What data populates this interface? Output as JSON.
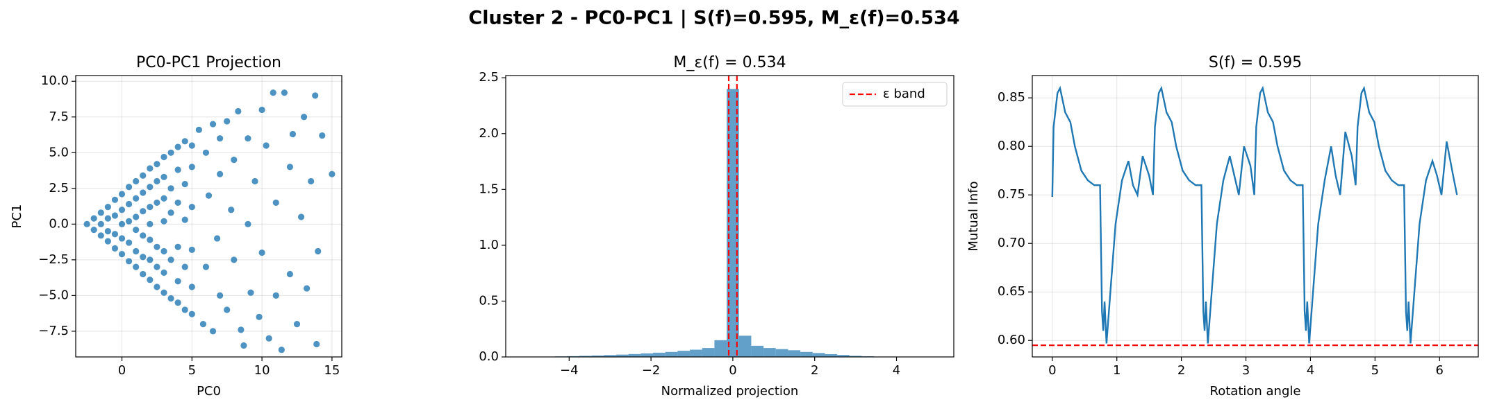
{
  "title": "Cluster 2 - PC0-PC1 | S(f)=0.595, M_ε(f)=0.534",
  "chart_data": [
    {
      "type": "scatter",
      "title": "PC0-PC1 Projection",
      "x_label": "PC0",
      "y_label": "PC1",
      "color": "#1f77b4",
      "grid": true,
      "xlim": [
        -3.3,
        15.7
      ],
      "xticks": [
        0,
        5,
        10,
        15
      ],
      "ylim": [
        -9.3,
        10.4
      ],
      "yticks": [
        {
          "value": -7.5,
          "label": "−7.5"
        },
        {
          "value": -5,
          "label": "−5.0"
        },
        {
          "value": -2.5,
          "label": "−2.5"
        },
        {
          "value": 0,
          "label": "0.0"
        },
        2.5,
        {
          "value": 5,
          "label": "5.0"
        },
        7.5,
        {
          "value": 10,
          "label": "10.0"
        }
      ],
      "x": [
        -2.5,
        -2,
        -2,
        -1.5,
        -1.5,
        -1.5,
        -1,
        -1,
        -1,
        -1,
        -0.5,
        -0.5,
        -0.5,
        -0.5,
        0,
        0,
        0,
        0,
        0,
        0.5,
        0.5,
        0.5,
        0.5,
        0.5,
        1,
        1,
        1,
        1,
        1,
        1,
        1.5,
        1.5,
        1.5,
        1.5,
        1.5,
        1.5,
        2,
        2,
        2,
        2,
        2,
        2,
        2,
        2.5,
        2.5,
        2.5,
        2.5,
        2.5,
        2.5,
        3,
        3,
        3,
        3,
        3,
        3,
        3,
        3.5,
        3.5,
        3.5,
        3.5,
        3.5,
        4,
        4,
        4,
        4,
        4,
        4,
        4.5,
        4.5,
        4.5,
        4.5,
        4.5,
        5,
        5,
        5,
        5,
        5,
        5,
        5.5,
        5.8,
        6,
        6,
        6.2,
        6.5,
        6.5,
        6.8,
        7,
        7,
        7,
        7.5,
        7.5,
        7.8,
        8,
        8,
        8.3,
        8.5,
        8.7,
        9,
        9,
        9.2,
        9.5,
        9.8,
        10,
        10,
        10.3,
        10.5,
        10.8,
        11,
        11,
        11.4,
        11.6,
        12,
        12,
        12.2,
        12.5,
        12.8,
        13,
        13.2,
        13.5,
        13.8,
        13.9,
        14,
        14.3,
        15
      ],
      "y": [
        0,
        0.4,
        -0.4,
        0.8,
        -0.8,
        0,
        1.2,
        -1.2,
        0.4,
        -0.5,
        1.7,
        -1.7,
        0.6,
        -0.7,
        2.1,
        -2.1,
        1,
        -1,
        0,
        2.6,
        -2.6,
        1.4,
        -1.3,
        0.2,
        3,
        -3,
        1.8,
        -1.9,
        0.5,
        -0.4,
        3.4,
        -3.5,
        2.2,
        -2.3,
        0.9,
        -0.8,
        3.9,
        -3.9,
        2.6,
        -2.5,
        1.2,
        -1.1,
        0,
        4.2,
        -4.4,
        3,
        -3,
        1.5,
        -1.6,
        4.7,
        -4.8,
        3.3,
        -3.4,
        1.8,
        -1.9,
        0.2,
        5,
        -5.2,
        2.5,
        -2.5,
        0.8,
        5.4,
        -5.5,
        3.8,
        -4,
        1.5,
        -1.6,
        5.8,
        -6,
        2.8,
        -3,
        0.3,
        5.5,
        -6.3,
        4,
        -4.4,
        1.2,
        -1.8,
        6.6,
        -7,
        5,
        -3,
        2,
        7,
        -7.5,
        -1,
        6,
        3.5,
        -5,
        7.2,
        -6,
        1,
        4.5,
        -2.5,
        7.9,
        -7.4,
        -8.5,
        6,
        0,
        -4.8,
        3,
        -6.5,
        8,
        -2,
        5.5,
        -8,
        9.2,
        1.5,
        -5,
        -8.8,
        9.2,
        4,
        -3.5,
        6.3,
        -7,
        0.5,
        7.5,
        -4.5,
        3,
        9,
        -8.4,
        -1.9,
        6.2,
        3.5
      ]
    },
    {
      "type": "histogram",
      "title": "M_ε(f) = 0.534",
      "x_label": "Normalized projection",
      "color": "#1f77b4",
      "grid": false,
      "xlim": [
        -5.55,
        5.4
      ],
      "xticks": [
        {
          "value": -4,
          "label": "−4"
        },
        {
          "value": -2,
          "label": "−2"
        },
        0,
        2,
        4
      ],
      "ylim": [
        0,
        2.52
      ],
      "yticks": [
        {
          "value": 0,
          "label": "0.0"
        },
        0.5,
        {
          "value": 1,
          "label": "1.0"
        },
        1.5,
        {
          "value": 2,
          "label": "2.0"
        },
        2.5
      ],
      "bins": [
        -5.25,
        -4.95,
        -4.65,
        -4.35,
        -4.05,
        -3.75,
        -3.45,
        -3.15,
        -2.85,
        -2.55,
        -2.25,
        -1.95,
        -1.65,
        -1.35,
        -1.05,
        -0.75,
        -0.45,
        -0.15,
        0.15,
        0.45,
        0.75,
        1.05,
        1.35,
        1.65,
        1.95,
        2.25,
        2.55,
        2.85,
        3.15,
        3.45,
        3.75,
        4.05,
        4.35,
        4.65,
        4.95,
        5.25
      ],
      "values": [
        0.001,
        0.002,
        0.003,
        0.005,
        0.007,
        0.01,
        0.013,
        0.017,
        0.021,
        0.026,
        0.032,
        0.038,
        0.045,
        0.055,
        0.065,
        0.08,
        0.15,
        2.4,
        0.19,
        0.1,
        0.08,
        0.07,
        0.06,
        0.045,
        0.035,
        0.025,
        0.018,
        0.01,
        0.006,
        0.003,
        0.002,
        0.001,
        0,
        0,
        0
      ],
      "vlines": {
        "name": "ε band",
        "color": "#ff0000",
        "values": [
          -0.1,
          0.1
        ]
      },
      "legend": "upper right"
    },
    {
      "type": "line",
      "title": "S(f) = 0.595",
      "x_label": "Rotation angle",
      "y_label": "Mutual Info",
      "color": "#1f77b4",
      "grid": true,
      "xlim": [
        -0.31,
        6.6
      ],
      "xticks": [
        0,
        1,
        2,
        3,
        4,
        5,
        6
      ],
      "ylim": [
        0.583,
        0.873
      ],
      "yticks": [
        {
          "value": 0.6,
          "label": "0.60"
        },
        0.65,
        {
          "value": 0.7,
          "label": "0.70"
        },
        0.75,
        {
          "value": 0.8,
          "label": "0.80"
        },
        0.85
      ],
      "x": [
        0,
        0.02,
        0.08,
        0.12,
        0.2,
        0.28,
        0.35,
        0.45,
        0.55,
        0.65,
        0.74,
        0.77,
        0.79,
        0.81,
        0.84,
        0.9,
        0.98,
        1.08,
        1.18,
        1.25,
        1.32,
        1.4,
        1.5,
        1.56,
        1.59,
        1.65,
        1.69,
        1.77,
        1.85,
        1.92,
        2.02,
        2.12,
        2.22,
        2.31,
        2.34,
        2.36,
        2.38,
        2.41,
        2.47,
        2.55,
        2.65,
        2.75,
        2.82,
        2.89,
        2.97,
        3.07,
        3.13,
        3.16,
        3.22,
        3.26,
        3.34,
        3.42,
        3.49,
        3.59,
        3.69,
        3.79,
        3.88,
        3.91,
        3.93,
        3.95,
        3.98,
        4.04,
        4.12,
        4.22,
        4.32,
        4.39,
        4.46,
        4.54,
        4.64,
        4.7,
        4.73,
        4.79,
        4.83,
        4.91,
        4.99,
        5.06,
        5.16,
        5.26,
        5.36,
        5.45,
        5.48,
        5.5,
        5.52,
        5.55,
        5.61,
        5.69,
        5.79,
        5.89,
        5.96,
        6.03,
        6.11,
        6.21,
        6.27
      ],
      "values": [
        0.748,
        0.82,
        0.855,
        0.86,
        0.835,
        0.825,
        0.8,
        0.775,
        0.765,
        0.76,
        0.76,
        0.63,
        0.61,
        0.64,
        0.597,
        0.65,
        0.72,
        0.765,
        0.785,
        0.76,
        0.75,
        0.79,
        0.77,
        0.75,
        0.82,
        0.855,
        0.86,
        0.835,
        0.825,
        0.8,
        0.775,
        0.765,
        0.76,
        0.76,
        0.63,
        0.61,
        0.64,
        0.597,
        0.65,
        0.72,
        0.765,
        0.79,
        0.77,
        0.75,
        0.8,
        0.78,
        0.75,
        0.82,
        0.855,
        0.86,
        0.835,
        0.825,
        0.8,
        0.775,
        0.765,
        0.76,
        0.76,
        0.63,
        0.61,
        0.64,
        0.597,
        0.65,
        0.72,
        0.765,
        0.8,
        0.77,
        0.75,
        0.815,
        0.79,
        0.76,
        0.82,
        0.855,
        0.86,
        0.835,
        0.825,
        0.8,
        0.775,
        0.765,
        0.76,
        0.76,
        0.63,
        0.61,
        0.64,
        0.597,
        0.65,
        0.72,
        0.765,
        0.785,
        0.77,
        0.75,
        0.805,
        0.77,
        0.75
      ],
      "hline": {
        "value": 0.595,
        "color": "#ff0000"
      }
    }
  ]
}
